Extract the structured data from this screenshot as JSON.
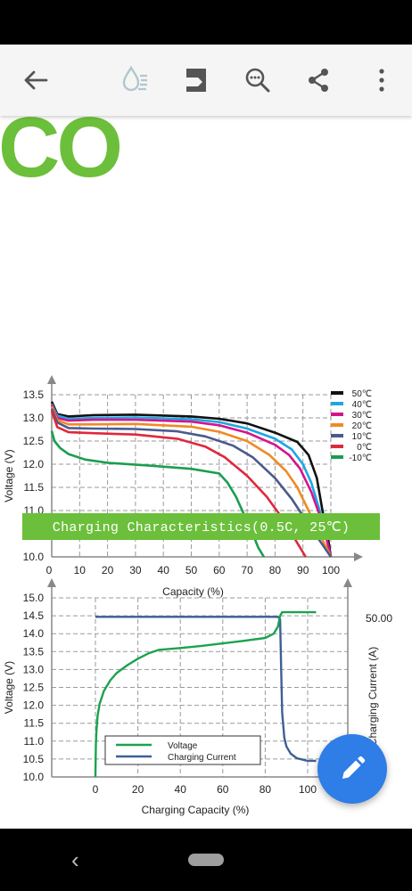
{
  "toolbar": {
    "icons": [
      "back-arrow-icon",
      "ink-drop-icon",
      "bookmark-icon",
      "search-zoom-icon",
      "share-icon",
      "more-vert-icon"
    ]
  },
  "logo_text": "CO",
  "banner": {
    "text": "Charging Characteristics(0.5C, 25℃)"
  },
  "colors": {
    "accent_green": "#6cbf3b",
    "fab_blue": "#2f7de6"
  },
  "chart_data": [
    {
      "type": "line",
      "title": "",
      "xlabel": "Capacity (%)",
      "ylabel": "Voltage (V)",
      "xlim": [
        0,
        100
      ],
      "ylim": [
        10.0,
        13.5
      ],
      "xticks": [
        "0",
        "10",
        "20",
        "30",
        "40",
        "50",
        "60",
        "70",
        "80",
        "90",
        "100"
      ],
      "yticks": [
        "10.0",
        "10.5",
        "11.0",
        "11.5",
        "12.0",
        "12.5",
        "13.0",
        "13.5"
      ],
      "grid": true,
      "legend_position": "top-right",
      "series": [
        {
          "name": "50℃",
          "color": "#111111",
          "x": [
            0,
            2,
            6,
            15,
            30,
            50,
            60,
            70,
            80,
            88,
            92,
            95,
            97,
            99,
            100
          ],
          "y": [
            13.35,
            13.08,
            13.03,
            13.06,
            13.07,
            13.03,
            12.98,
            12.88,
            12.68,
            12.48,
            12.2,
            11.7,
            11.0,
            10.4,
            10.0
          ]
        },
        {
          "name": "40℃",
          "color": "#1fa7e1",
          "x": [
            0,
            2,
            6,
            15,
            30,
            50,
            60,
            70,
            80,
            86,
            90,
            93,
            96,
            98,
            100
          ],
          "y": [
            13.3,
            13.05,
            12.98,
            13.0,
            13.01,
            12.97,
            12.91,
            12.77,
            12.55,
            12.32,
            12.0,
            11.6,
            11.0,
            10.5,
            10.0
          ]
        },
        {
          "name": "30℃",
          "color": "#d4148c",
          "x": [
            0,
            2,
            6,
            15,
            30,
            50,
            60,
            70,
            80,
            85,
            89,
            93,
            96,
            98,
            100
          ],
          "y": [
            13.28,
            13.0,
            12.94,
            12.96,
            12.96,
            12.92,
            12.84,
            12.68,
            12.42,
            12.2,
            11.9,
            11.4,
            10.9,
            10.5,
            10.0
          ]
        },
        {
          "name": "20℃",
          "color": "#f08a24",
          "x": [
            0,
            2,
            6,
            15,
            30,
            50,
            60,
            70,
            78,
            84,
            88,
            92,
            95,
            98,
            100
          ],
          "y": [
            13.25,
            12.95,
            12.86,
            12.86,
            12.87,
            12.81,
            12.7,
            12.5,
            12.2,
            11.85,
            11.5,
            11.0,
            10.6,
            10.25,
            10.0
          ]
        },
        {
          "name": "10℃",
          "color": "#4a5a8c",
          "x": [
            0,
            2,
            6,
            15,
            30,
            45,
            55,
            65,
            72,
            80,
            86,
            92,
            96,
            100
          ],
          "y": [
            13.2,
            12.9,
            12.78,
            12.77,
            12.76,
            12.71,
            12.6,
            12.4,
            12.15,
            11.7,
            11.25,
            10.7,
            10.35,
            10.0
          ]
        },
        {
          "name": "0℃",
          "color": "#e0283c",
          "x": [
            0,
            2,
            6,
            15,
            30,
            45,
            55,
            62,
            70,
            77,
            83,
            88,
            91
          ],
          "y": [
            13.15,
            12.8,
            12.69,
            12.67,
            12.64,
            12.55,
            12.38,
            12.15,
            11.75,
            11.3,
            10.8,
            10.3,
            10.0
          ]
        },
        {
          "name": "-10℃",
          "color": "#1a9e50",
          "x": [
            0,
            1,
            3,
            6,
            12,
            20,
            35,
            50,
            60,
            63,
            66,
            69,
            72,
            74,
            76
          ],
          "y": [
            12.72,
            12.5,
            12.35,
            12.22,
            12.1,
            12.03,
            11.97,
            11.9,
            11.8,
            11.6,
            11.3,
            10.9,
            10.5,
            10.2,
            10.0
          ]
        }
      ]
    },
    {
      "type": "line",
      "title": "Charging Characteristics(0.5C, 25℃)",
      "xlabel": "Charging Capacity (%)",
      "ylabel": "Voltage (V)",
      "y2label": "Charging Current (A)",
      "xlim": [
        0,
        100
      ],
      "ylim": [
        10.0,
        15.0
      ],
      "xticks": [
        "0",
        "20",
        "40",
        "60",
        "80",
        "100"
      ],
      "yticks": [
        "10.0",
        "10.5",
        "11.0",
        "11.5",
        "12.0",
        "12.5",
        "13.0",
        "13.5",
        "14.0",
        "14.5",
        "15.0"
      ],
      "y2ticks": [
        "50.00"
      ],
      "grid": true,
      "legend_position": "bottom-left",
      "series": [
        {
          "name": "Voltage",
          "color": "#1ba34e",
          "x": [
            0,
            0.2,
            0.5,
            1,
            2,
            4,
            7,
            10,
            15,
            20,
            25,
            30,
            40,
            50,
            60,
            70,
            80,
            84,
            86,
            87,
            88,
            90,
            95,
            100,
            104
          ],
          "y": [
            10.0,
            10.9,
            11.3,
            11.7,
            12.05,
            12.4,
            12.7,
            12.9,
            13.12,
            13.3,
            13.45,
            13.55,
            13.6,
            13.66,
            13.73,
            13.8,
            13.88,
            14.0,
            14.2,
            14.5,
            14.6,
            14.6,
            14.6,
            14.6,
            14.6
          ]
        },
        {
          "name": "Charging Current",
          "color": "#3e5f96",
          "x": [
            0,
            20,
            40,
            60,
            80,
            86,
            87,
            87.5,
            88,
            89,
            90,
            92,
            95,
            100,
            104
          ],
          "y": [
            14.47,
            14.47,
            14.47,
            14.47,
            14.47,
            14.47,
            14.4,
            13.0,
            11.8,
            11.1,
            10.85,
            10.65,
            10.52,
            10.45,
            10.45
          ]
        }
      ]
    }
  ]
}
